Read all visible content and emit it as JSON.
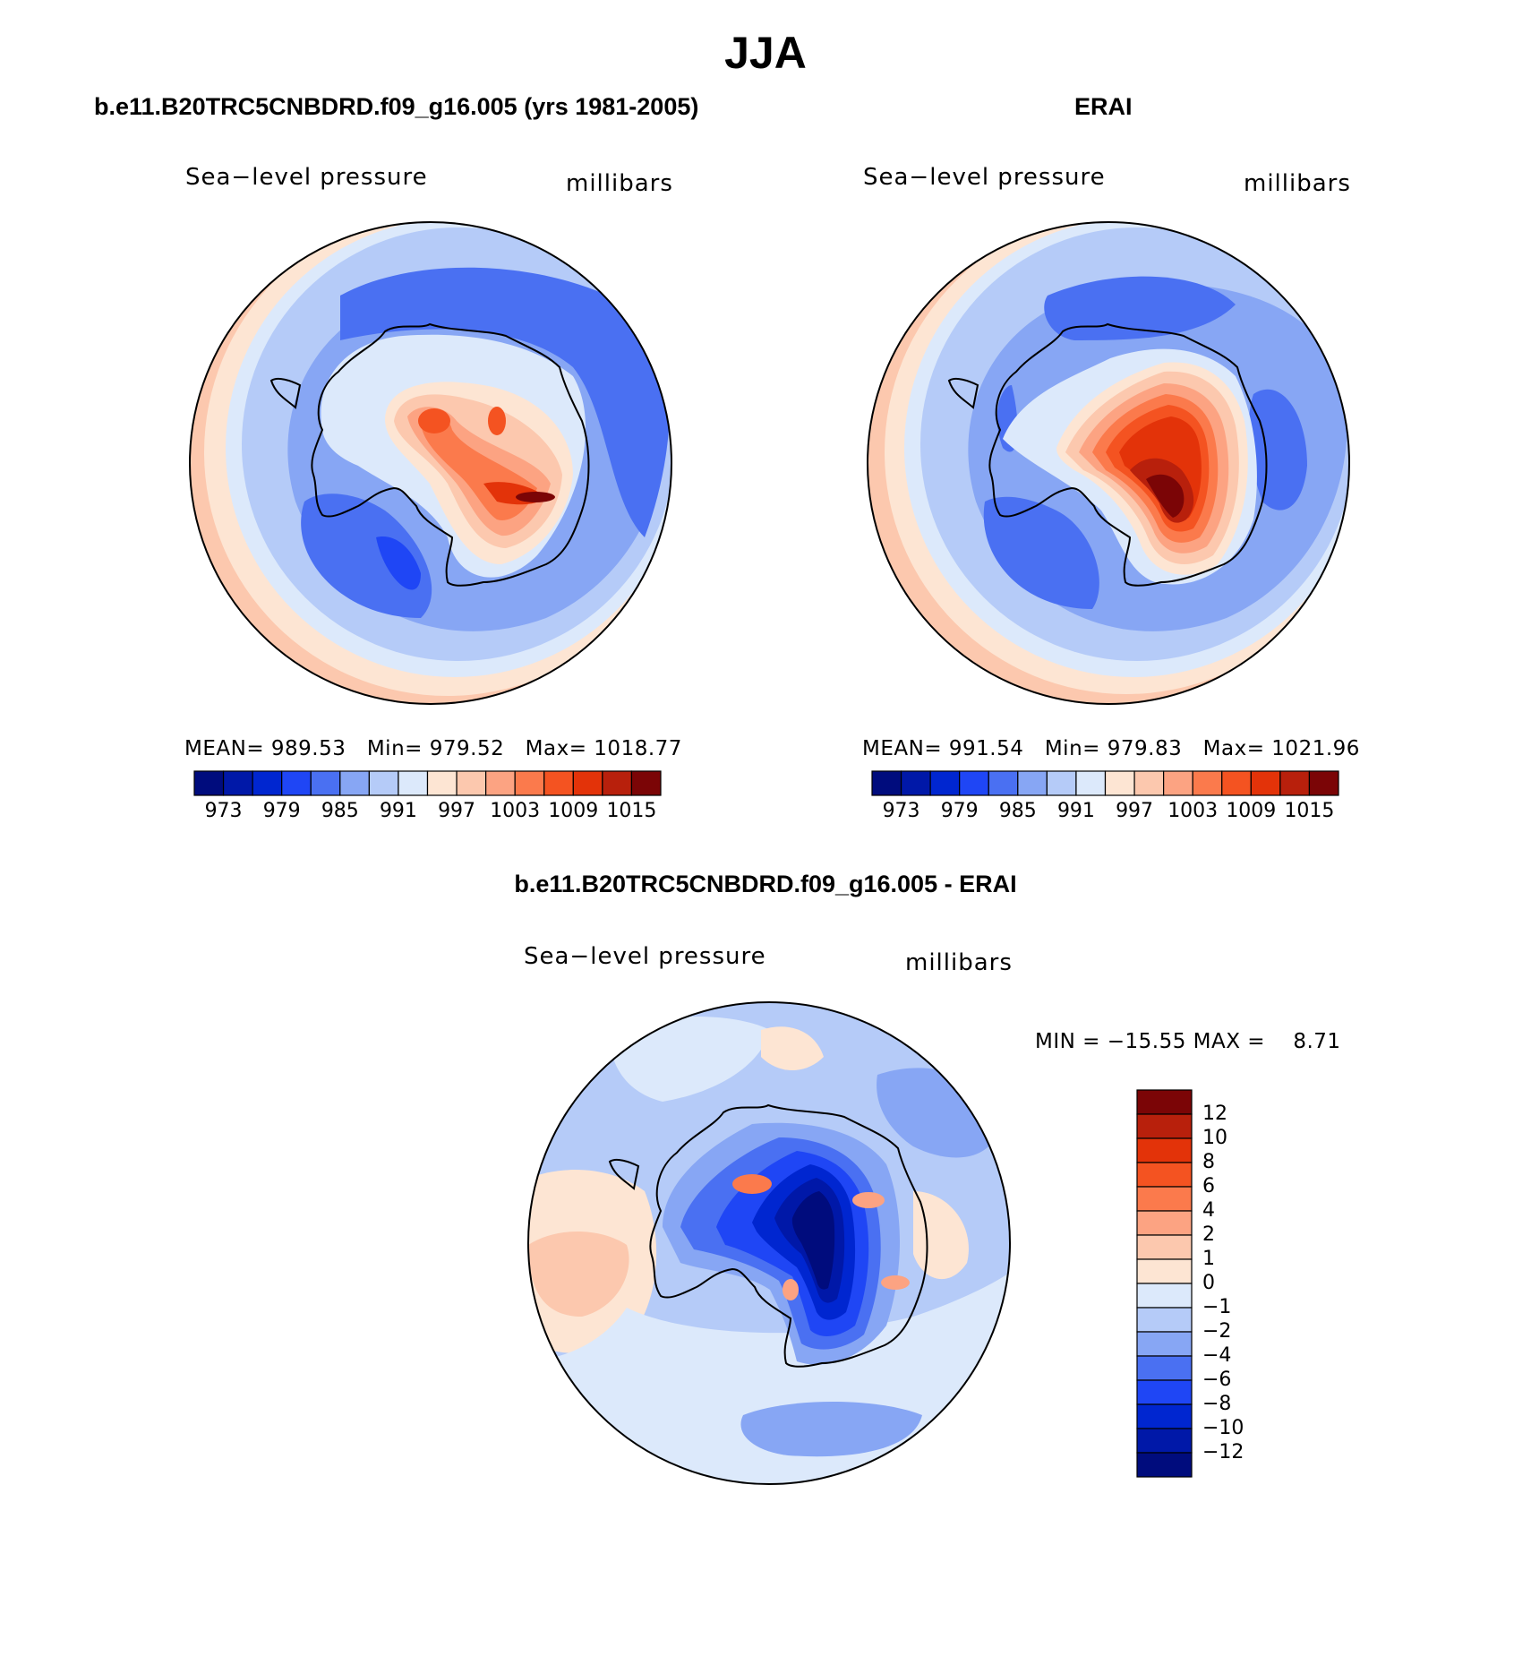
{
  "figure": {
    "title": "JJA",
    "panels": [
      {
        "title": "b.e11.B20TRC5CNBDRD.f09_g16.005 (yrs 1981-2005)",
        "variable": "Sea−level pressure",
        "units": "millibars",
        "stats": {
          "mean_label": "MEAN=",
          "mean": "989.53",
          "min_label": "Min=",
          "min": "979.52",
          "max_label": "Max=",
          "max": "1018.77"
        }
      },
      {
        "title": "ERAI",
        "variable": "Sea−level pressure",
        "units": "millibars",
        "stats": {
          "mean_label": "MEAN=",
          "mean": "991.54",
          "min_label": "Min=",
          "min": "979.83",
          "max_label": "Max=",
          "max": "1021.96"
        }
      }
    ],
    "difference": {
      "title": "b.e11.B20TRC5CNBDRD.f09_g16.005 - ERAI",
      "variable": "Sea−level pressure",
      "units": "millibars",
      "stats_text": "MIN = −15.55 MAX =    8.71"
    }
  },
  "colorbar_abs": {
    "tick_labels": [
      "973",
      "979",
      "985",
      "991",
      "997",
      "1003",
      "1009",
      "1015"
    ],
    "colors": [
      "#000c7d",
      "#0018a8",
      "#0026d0",
      "#1f46f5",
      "#4a70f2",
      "#87a6f4",
      "#b5cbf8",
      "#dce9fb",
      "#fde5d3",
      "#fcc8ae",
      "#fca382",
      "#fb7a4c",
      "#f45321",
      "#e33309",
      "#b8200c",
      "#7b0506"
    ]
  },
  "colorbar_diff": {
    "tick_labels": [
      "12",
      "10",
      "8",
      "6",
      "4",
      "2",
      "1",
      "0",
      "−1",
      "−2",
      "−4",
      "−6",
      "−8",
      "−10",
      "−12"
    ],
    "colors": [
      "#7b0506",
      "#b8200c",
      "#e33309",
      "#f45321",
      "#fb7a4c",
      "#fca382",
      "#fcc8ae",
      "#fde5d3",
      "#dce9fb",
      "#b5cbf8",
      "#87a6f4",
      "#4a70f2",
      "#1f46f5",
      "#0026d0",
      "#0018a8",
      "#000c7d"
    ]
  },
  "chart_data": [
    {
      "type": "heatmap",
      "title": "b.e11.B20TRC5CNBDRD.f09_g16.005 (yrs 1981-2005)",
      "variable": "Sea-level pressure",
      "units": "millibars",
      "projection": "south polar stereographic",
      "mean": 989.53,
      "min": 979.52,
      "max": 1018.77,
      "levels": [
        973,
        976,
        979,
        982,
        985,
        988,
        991,
        994,
        997,
        1000,
        1003,
        1006,
        1009,
        1012,
        1015
      ]
    },
    {
      "type": "heatmap",
      "title": "ERAI",
      "variable": "Sea-level pressure",
      "units": "millibars",
      "projection": "south polar stereographic",
      "mean": 991.54,
      "min": 979.83,
      "max": 1021.96,
      "levels": [
        973,
        976,
        979,
        982,
        985,
        988,
        991,
        994,
        997,
        1000,
        1003,
        1006,
        1009,
        1012,
        1015
      ]
    },
    {
      "type": "heatmap",
      "title": "b.e11.B20TRC5CNBDRD.f09_g16.005 - ERAI",
      "variable": "Sea-level pressure",
      "units": "millibars",
      "projection": "south polar stereographic",
      "min": -15.55,
      "max": 8.71,
      "levels": [
        -12,
        -10,
        -8,
        -6,
        -4,
        -2,
        -1,
        0,
        1,
        2,
        4,
        6,
        8,
        10,
        12
      ]
    }
  ]
}
